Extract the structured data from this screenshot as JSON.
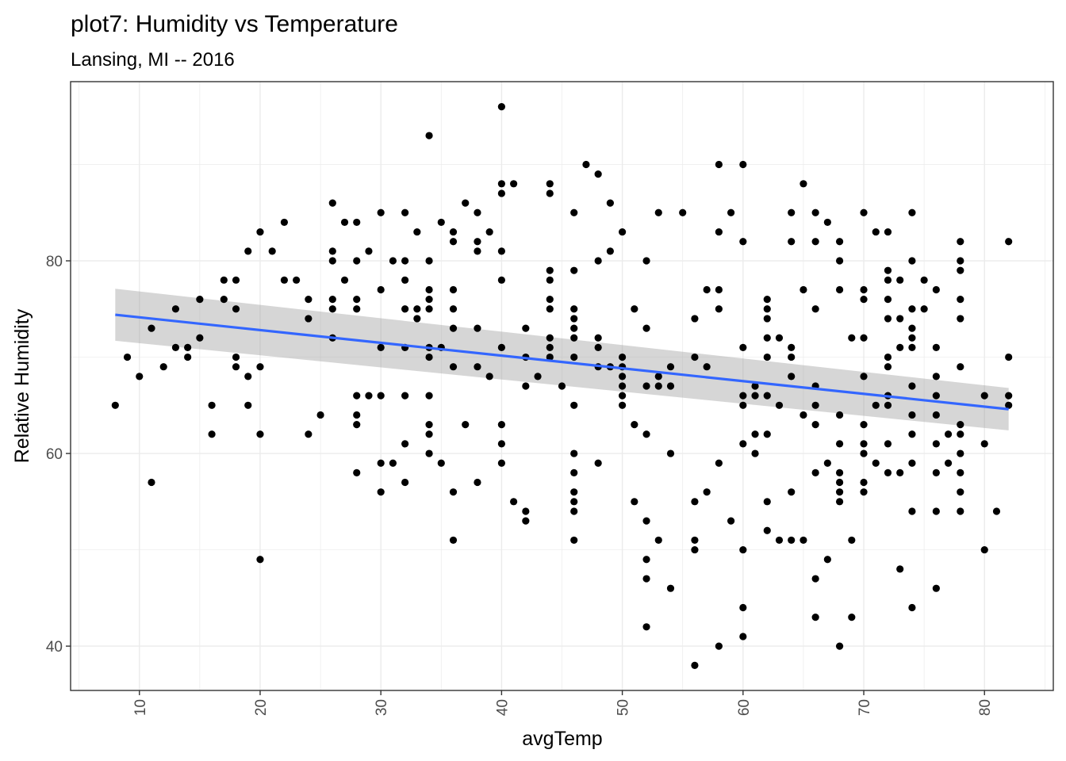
{
  "chart_data": {
    "type": "scatter",
    "title": "plot7: Humidity vs Temperature",
    "subtitle": "Lansing, MI -- 2016",
    "xlabel": "avgTemp",
    "ylabel": "Relative Humidity",
    "xlim": [
      4.3,
      85.7
    ],
    "ylim": [
      35.4,
      98.6
    ],
    "x_ticks": [
      10,
      20,
      30,
      40,
      50,
      60,
      70,
      80
    ],
    "y_ticks": [
      40,
      60,
      80
    ],
    "grid": true,
    "point_color": "#000000",
    "trend": {
      "method": "linear fit with confidence band",
      "color": "#3366ff",
      "band_color": "#999999",
      "x": [
        8,
        82
      ],
      "y": [
        74.4,
        64.6
      ],
      "band_upper": [
        77.1,
        66.8
      ],
      "band_lower": [
        71.7,
        62.4
      ]
    },
    "points": [
      [
        8,
        65
      ],
      [
        9,
        70
      ],
      [
        10,
        68
      ],
      [
        11,
        73
      ],
      [
        11,
        57
      ],
      [
        12,
        69
      ],
      [
        13,
        71
      ],
      [
        13,
        75
      ],
      [
        14,
        71
      ],
      [
        14,
        70
      ],
      [
        15,
        76
      ],
      [
        15,
        72
      ],
      [
        16,
        65
      ],
      [
        16,
        62
      ],
      [
        17,
        78
      ],
      [
        17,
        76
      ],
      [
        18,
        78
      ],
      [
        18,
        75
      ],
      [
        18,
        70
      ],
      [
        18,
        69
      ],
      [
        19,
        81
      ],
      [
        19,
        68
      ],
      [
        19,
        65
      ],
      [
        20,
        83
      ],
      [
        20,
        69
      ],
      [
        20,
        62
      ],
      [
        20,
        49
      ],
      [
        21,
        81
      ],
      [
        22,
        84
      ],
      [
        22,
        78
      ],
      [
        23,
        78
      ],
      [
        24,
        76
      ],
      [
        24,
        74
      ],
      [
        24,
        62
      ],
      [
        25,
        64
      ],
      [
        26,
        86
      ],
      [
        26,
        81
      ],
      [
        26,
        80
      ],
      [
        26,
        76
      ],
      [
        26,
        75
      ],
      [
        26,
        72
      ],
      [
        27,
        84
      ],
      [
        27,
        78
      ],
      [
        28,
        84
      ],
      [
        28,
        80
      ],
      [
        28,
        76
      ],
      [
        28,
        75
      ],
      [
        28,
        66
      ],
      [
        28,
        64
      ],
      [
        28,
        63
      ],
      [
        28,
        58
      ],
      [
        29,
        81
      ],
      [
        29,
        66
      ],
      [
        30,
        85
      ],
      [
        30,
        77
      ],
      [
        30,
        71
      ],
      [
        30,
        66
      ],
      [
        30,
        59
      ],
      [
        30,
        56
      ],
      [
        31,
        80
      ],
      [
        31,
        59
      ],
      [
        32,
        85
      ],
      [
        32,
        80
      ],
      [
        32,
        78
      ],
      [
        32,
        75
      ],
      [
        32,
        71
      ],
      [
        32,
        66
      ],
      [
        32,
        61
      ],
      [
        32,
        57
      ],
      [
        33,
        83
      ],
      [
        33,
        75
      ],
      [
        33,
        74
      ],
      [
        34,
        93
      ],
      [
        34,
        80
      ],
      [
        34,
        77
      ],
      [
        34,
        76
      ],
      [
        34,
        75
      ],
      [
        34,
        71
      ],
      [
        34,
        70
      ],
      [
        34,
        66
      ],
      [
        34,
        63
      ],
      [
        34,
        62
      ],
      [
        34,
        60
      ],
      [
        35,
        84
      ],
      [
        35,
        71
      ],
      [
        35,
        59
      ],
      [
        36,
        83
      ],
      [
        36,
        82
      ],
      [
        36,
        77
      ],
      [
        36,
        75
      ],
      [
        36,
        73
      ],
      [
        36,
        69
      ],
      [
        36,
        56
      ],
      [
        36,
        51
      ],
      [
        37,
        86
      ],
      [
        37,
        63
      ],
      [
        38,
        85
      ],
      [
        38,
        82
      ],
      [
        38,
        81
      ],
      [
        38,
        73
      ],
      [
        38,
        69
      ],
      [
        38,
        57
      ],
      [
        39,
        83
      ],
      [
        39,
        68
      ],
      [
        40,
        96
      ],
      [
        40,
        88
      ],
      [
        40,
        87
      ],
      [
        40,
        81
      ],
      [
        40,
        78
      ],
      [
        40,
        71
      ],
      [
        40,
        63
      ],
      [
        40,
        61
      ],
      [
        40,
        59
      ],
      [
        41,
        88
      ],
      [
        41,
        55
      ],
      [
        42,
        73
      ],
      [
        42,
        70
      ],
      [
        42,
        67
      ],
      [
        42,
        54
      ],
      [
        42,
        53
      ],
      [
        43,
        68
      ],
      [
        44,
        88
      ],
      [
        44,
        87
      ],
      [
        44,
        79
      ],
      [
        44,
        78
      ],
      [
        44,
        76
      ],
      [
        44,
        75
      ],
      [
        44,
        72
      ],
      [
        44,
        71
      ],
      [
        44,
        70
      ],
      [
        45,
        67
      ],
      [
        46,
        85
      ],
      [
        46,
        79
      ],
      [
        46,
        75
      ],
      [
        46,
        74
      ],
      [
        46,
        73
      ],
      [
        46,
        72
      ],
      [
        46,
        70
      ],
      [
        46,
        65
      ],
      [
        46,
        60
      ],
      [
        46,
        58
      ],
      [
        46,
        56
      ],
      [
        46,
        55
      ],
      [
        46,
        54
      ],
      [
        46,
        51
      ],
      [
        47,
        90
      ],
      [
        48,
        89
      ],
      [
        48,
        80
      ],
      [
        48,
        72
      ],
      [
        48,
        71
      ],
      [
        48,
        69
      ],
      [
        48,
        59
      ],
      [
        49,
        86
      ],
      [
        49,
        81
      ],
      [
        49,
        69
      ],
      [
        50,
        83
      ],
      [
        50,
        70
      ],
      [
        50,
        69
      ],
      [
        50,
        68
      ],
      [
        50,
        67
      ],
      [
        50,
        66
      ],
      [
        50,
        65
      ],
      [
        51,
        75
      ],
      [
        51,
        63
      ],
      [
        51,
        55
      ],
      [
        52,
        80
      ],
      [
        52,
        73
      ],
      [
        52,
        67
      ],
      [
        52,
        62
      ],
      [
        52,
        53
      ],
      [
        52,
        49
      ],
      [
        52,
        47
      ],
      [
        52,
        42
      ],
      [
        53,
        85
      ],
      [
        53,
        68
      ],
      [
        53,
        67
      ],
      [
        53,
        51
      ],
      [
        54,
        69
      ],
      [
        54,
        67
      ],
      [
        54,
        60
      ],
      [
        54,
        46
      ],
      [
        55,
        85
      ],
      [
        56,
        74
      ],
      [
        56,
        70
      ],
      [
        56,
        55
      ],
      [
        56,
        51
      ],
      [
        56,
        50
      ],
      [
        56,
        38
      ],
      [
        57,
        77
      ],
      [
        57,
        69
      ],
      [
        57,
        56
      ],
      [
        58,
        90
      ],
      [
        58,
        83
      ],
      [
        58,
        77
      ],
      [
        58,
        75
      ],
      [
        58,
        59
      ],
      [
        58,
        40
      ],
      [
        59,
        85
      ],
      [
        59,
        53
      ],
      [
        60,
        90
      ],
      [
        60,
        82
      ],
      [
        60,
        71
      ],
      [
        60,
        66
      ],
      [
        60,
        65
      ],
      [
        60,
        61
      ],
      [
        60,
        50
      ],
      [
        60,
        44
      ],
      [
        60,
        41
      ],
      [
        61,
        67
      ],
      [
        61,
        66
      ],
      [
        61,
        62
      ],
      [
        61,
        60
      ],
      [
        62,
        76
      ],
      [
        62,
        75
      ],
      [
        62,
        74
      ],
      [
        62,
        72
      ],
      [
        62,
        70
      ],
      [
        62,
        66
      ],
      [
        62,
        62
      ],
      [
        62,
        55
      ],
      [
        62,
        52
      ],
      [
        63,
        72
      ],
      [
        63,
        65
      ],
      [
        63,
        51
      ],
      [
        64,
        85
      ],
      [
        64,
        82
      ],
      [
        64,
        71
      ],
      [
        64,
        70
      ],
      [
        64,
        68
      ],
      [
        64,
        56
      ],
      [
        64,
        51
      ],
      [
        65,
        88
      ],
      [
        65,
        77
      ],
      [
        65,
        64
      ],
      [
        65,
        51
      ],
      [
        66,
        85
      ],
      [
        66,
        82
      ],
      [
        66,
        75
      ],
      [
        66,
        67
      ],
      [
        66,
        65
      ],
      [
        66,
        63
      ],
      [
        66,
        58
      ],
      [
        66,
        47
      ],
      [
        66,
        43
      ],
      [
        67,
        84
      ],
      [
        67,
        59
      ],
      [
        67,
        49
      ],
      [
        68,
        82
      ],
      [
        68,
        80
      ],
      [
        68,
        77
      ],
      [
        68,
        64
      ],
      [
        68,
        61
      ],
      [
        68,
        58
      ],
      [
        68,
        57
      ],
      [
        68,
        56
      ],
      [
        68,
        55
      ],
      [
        68,
        40
      ],
      [
        69,
        72
      ],
      [
        69,
        51
      ],
      [
        69,
        43
      ],
      [
        70,
        85
      ],
      [
        70,
        77
      ],
      [
        70,
        76
      ],
      [
        70,
        72
      ],
      [
        70,
        68
      ],
      [
        70,
        63
      ],
      [
        70,
        61
      ],
      [
        70,
        60
      ],
      [
        70,
        57
      ],
      [
        70,
        56
      ],
      [
        71,
        83
      ],
      [
        71,
        65
      ],
      [
        71,
        59
      ],
      [
        72,
        83
      ],
      [
        72,
        79
      ],
      [
        72,
        78
      ],
      [
        72,
        76
      ],
      [
        72,
        74
      ],
      [
        72,
        70
      ],
      [
        72,
        69
      ],
      [
        72,
        66
      ],
      [
        72,
        65
      ],
      [
        72,
        61
      ],
      [
        72,
        58
      ],
      [
        73,
        78
      ],
      [
        73,
        74
      ],
      [
        73,
        71
      ],
      [
        73,
        58
      ],
      [
        73,
        48
      ],
      [
        74,
        85
      ],
      [
        74,
        80
      ],
      [
        74,
        75
      ],
      [
        74,
        73
      ],
      [
        74,
        72
      ],
      [
        74,
        71
      ],
      [
        74,
        67
      ],
      [
        74,
        64
      ],
      [
        74,
        62
      ],
      [
        74,
        59
      ],
      [
        74,
        54
      ],
      [
        74,
        44
      ],
      [
        75,
        78
      ],
      [
        75,
        75
      ],
      [
        76,
        77
      ],
      [
        76,
        71
      ],
      [
        76,
        68
      ],
      [
        76,
        66
      ],
      [
        76,
        64
      ],
      [
        76,
        61
      ],
      [
        76,
        58
      ],
      [
        76,
        54
      ],
      [
        76,
        46
      ],
      [
        77,
        62
      ],
      [
        77,
        59
      ],
      [
        78,
        82
      ],
      [
        78,
        80
      ],
      [
        78,
        79
      ],
      [
        78,
        76
      ],
      [
        78,
        74
      ],
      [
        78,
        69
      ],
      [
        78,
        63
      ],
      [
        78,
        62
      ],
      [
        78,
        60
      ],
      [
        78,
        58
      ],
      [
        78,
        56
      ],
      [
        78,
        54
      ],
      [
        80,
        66
      ],
      [
        80,
        61
      ],
      [
        80,
        50
      ],
      [
        81,
        54
      ],
      [
        82,
        82
      ],
      [
        82,
        70
      ],
      [
        82,
        66
      ],
      [
        82,
        65
      ]
    ]
  }
}
